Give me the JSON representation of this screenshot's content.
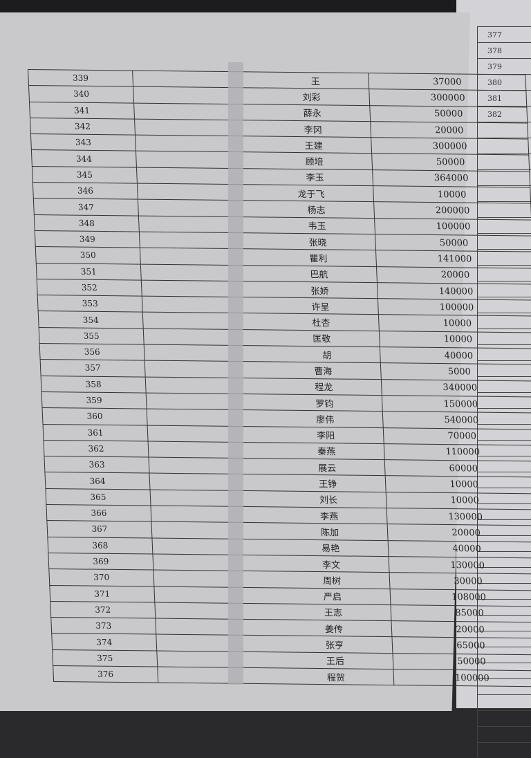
{
  "right_page": {
    "row_numbers": [
      "377",
      "378",
      "379",
      "380",
      "381",
      "382"
    ]
  },
  "table": {
    "rows": [
      {
        "no": "339",
        "name": "王",
        "amount": "37000"
      },
      {
        "no": "340",
        "name": "刘彩",
        "amount": "300000"
      },
      {
        "no": "341",
        "name": "薛永",
        "amount": "50000"
      },
      {
        "no": "342",
        "name": "李冈",
        "amount": "20000"
      },
      {
        "no": "343",
        "name": "王建",
        "amount": "300000"
      },
      {
        "no": "344",
        "name": "顾培",
        "amount": "50000"
      },
      {
        "no": "345",
        "name": "李玉",
        "amount": "364000"
      },
      {
        "no": "346",
        "name": "龙于飞",
        "amount": "10000"
      },
      {
        "no": "347",
        "name": "杨志",
        "amount": "200000"
      },
      {
        "no": "348",
        "name": "韦玉",
        "amount": "100000"
      },
      {
        "no": "349",
        "name": "张晓",
        "amount": "50000"
      },
      {
        "no": "350",
        "name": "瞿利",
        "amount": "141000"
      },
      {
        "no": "351",
        "name": "巴航",
        "amount": "20000"
      },
      {
        "no": "352",
        "name": "张娇",
        "amount": "140000"
      },
      {
        "no": "353",
        "name": "许呈",
        "amount": "100000"
      },
      {
        "no": "354",
        "name": "杜杏",
        "amount": "10000"
      },
      {
        "no": "355",
        "name": "匡敬",
        "amount": "10000"
      },
      {
        "no": "356",
        "name": "胡",
        "amount": "40000"
      },
      {
        "no": "357",
        "name": "曹海",
        "amount": "5000"
      },
      {
        "no": "358",
        "name": "程龙",
        "amount": "340000"
      },
      {
        "no": "359",
        "name": "罗钧",
        "amount": "150000"
      },
      {
        "no": "360",
        "name": "廖伟",
        "amount": "540000"
      },
      {
        "no": "361",
        "name": "李阳",
        "amount": "70000"
      },
      {
        "no": "362",
        "name": "秦燕",
        "amount": "110000"
      },
      {
        "no": "363",
        "name": "展云",
        "amount": "60000"
      },
      {
        "no": "364",
        "name": "王铮",
        "amount": "10000"
      },
      {
        "no": "365",
        "name": "刘长",
        "amount": "10000"
      },
      {
        "no": "366",
        "name": "李燕",
        "amount": "130000"
      },
      {
        "no": "367",
        "name": "陈加",
        "amount": "20000"
      },
      {
        "no": "368",
        "name": "易艳",
        "amount": "40000"
      },
      {
        "no": "369",
        "name": "李文",
        "amount": "130000"
      },
      {
        "no": "370",
        "name": "周树",
        "amount": "30000"
      },
      {
        "no": "371",
        "name": "严启",
        "amount": "108000"
      },
      {
        "no": "372",
        "name": "王志",
        "amount": "85000"
      },
      {
        "no": "373",
        "name": "姜传",
        "amount": "20000"
      },
      {
        "no": "374",
        "name": "张亨",
        "amount": "65000"
      },
      {
        "no": "375",
        "name": "王后",
        "amount": "50000"
      },
      {
        "no": "376",
        "name": "程贺",
        "amount": "100000"
      }
    ]
  }
}
